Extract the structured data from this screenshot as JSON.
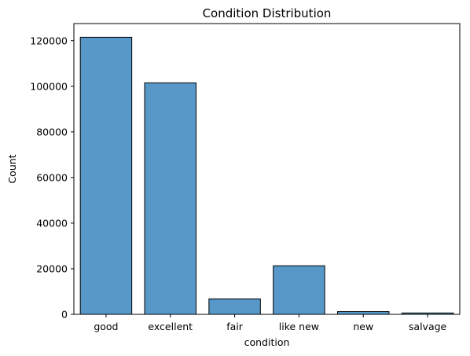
{
  "chart_data": {
    "type": "bar",
    "title": "Condition Distribution",
    "xlabel": "condition",
    "ylabel": "Count",
    "categories": [
      "good",
      "excellent",
      "fair",
      "like new",
      "new",
      "salvage"
    ],
    "values": [
      121500,
      101500,
      6800,
      21300,
      1200,
      600
    ],
    "ylim": [
      0,
      127500
    ],
    "yticks": [
      0,
      20000,
      40000,
      60000,
      80000,
      100000,
      120000
    ],
    "ytick_labels": [
      "0",
      "20000",
      "40000",
      "60000",
      "80000",
      "100000",
      "120000"
    ],
    "grid": false,
    "legend": "none",
    "bar_color": "#5798c9",
    "edge_color": "#000000"
  }
}
